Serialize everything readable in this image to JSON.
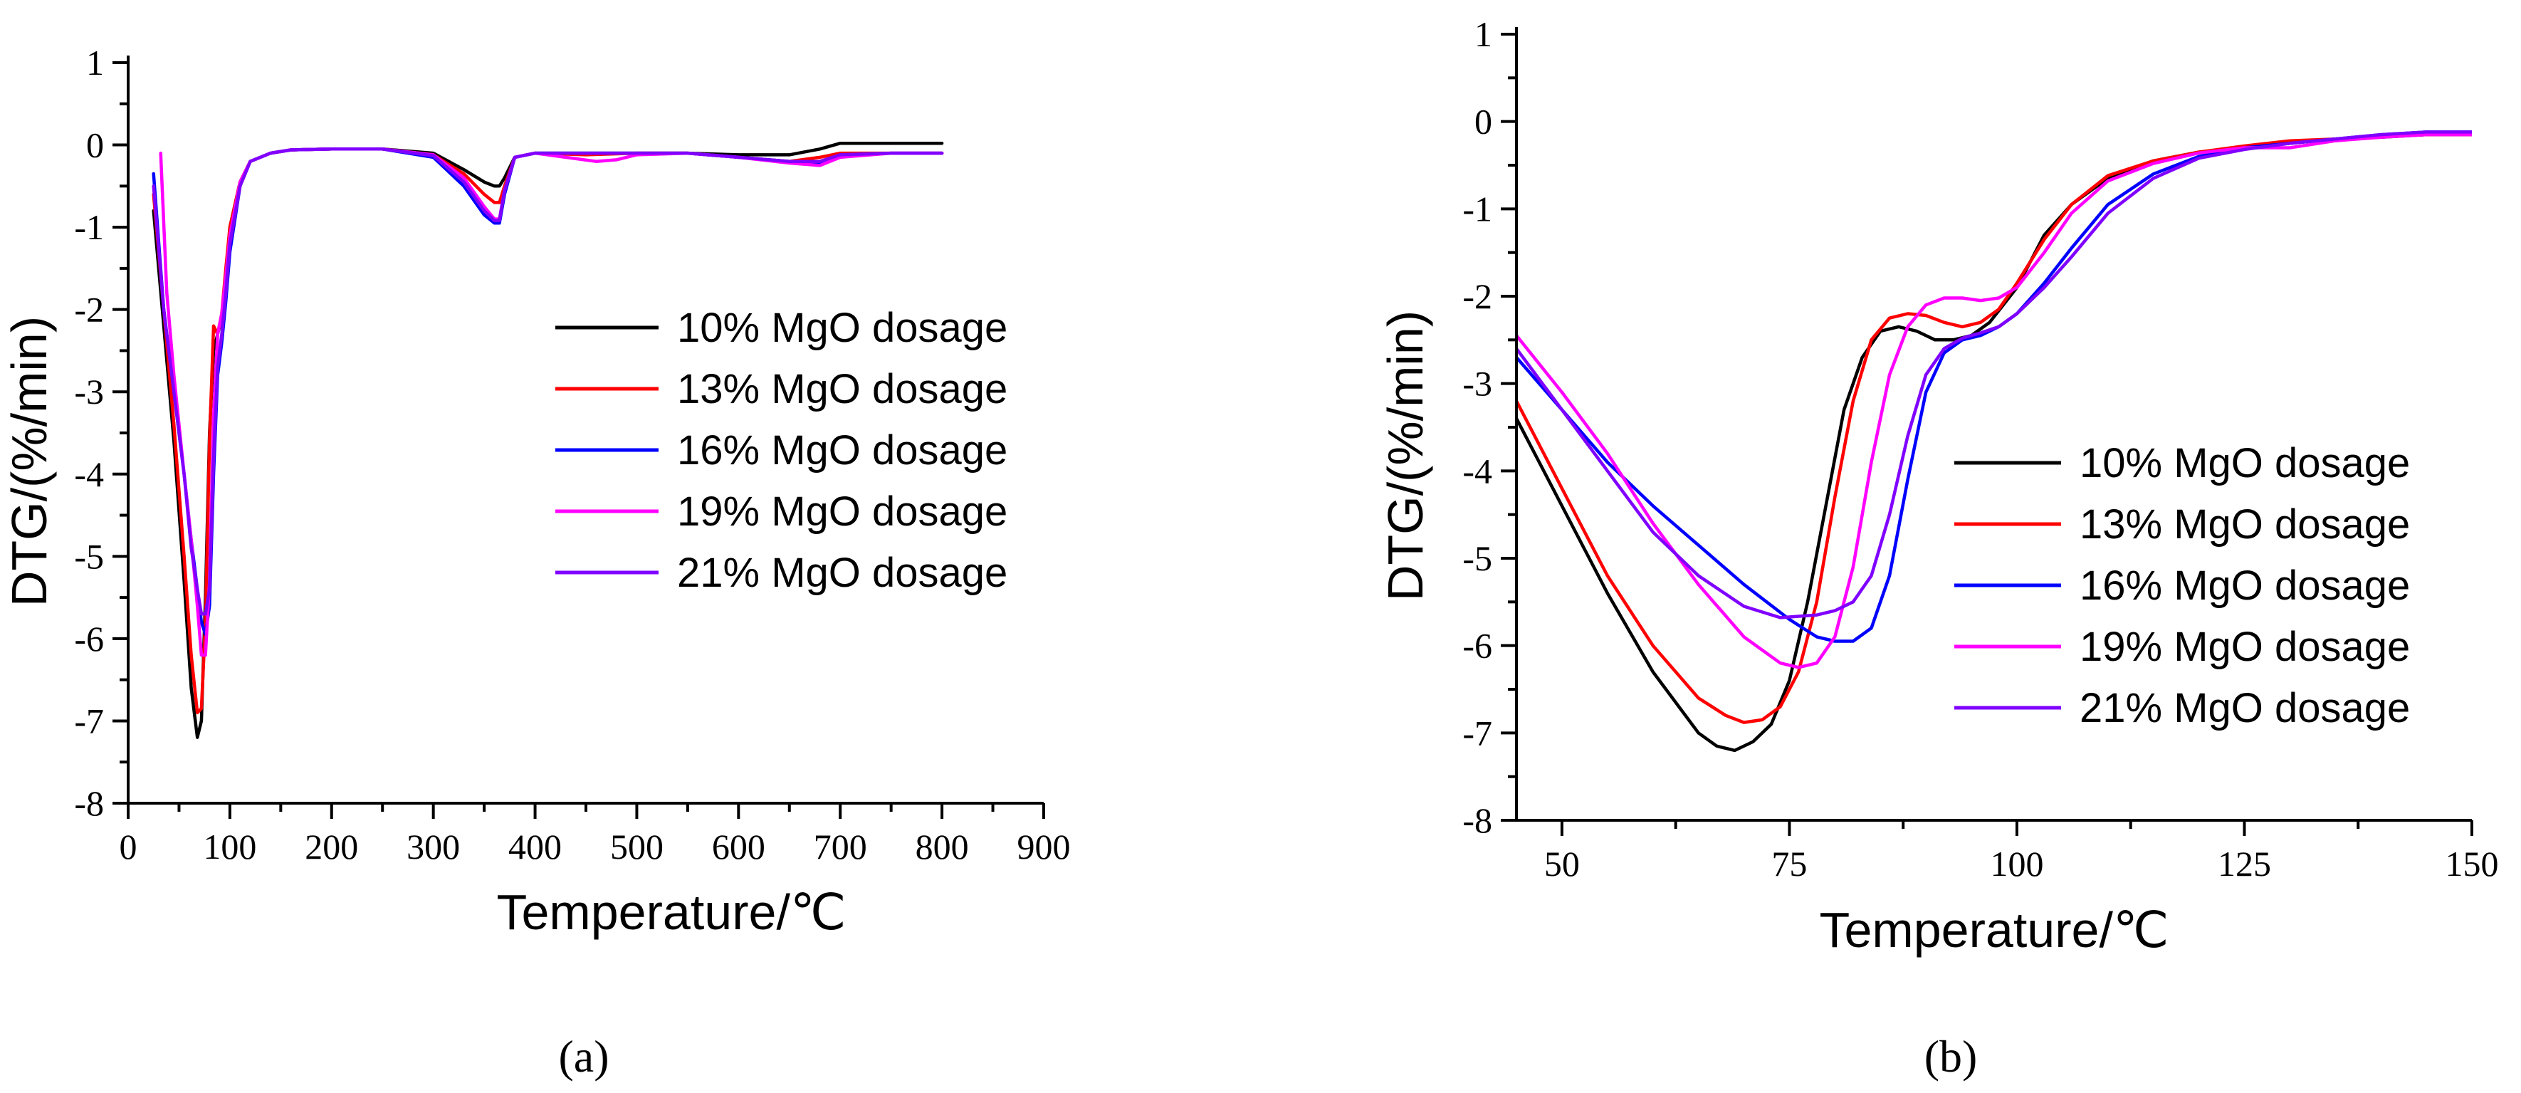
{
  "colors": {
    "10% MgO dosage": "#000000",
    "13% MgO dosage": "#ff0000",
    "16% MgO dosage": "#0000ff",
    "19% MgO dosage": "#ff00ff",
    "21% MgO dosage": "#8000ff"
  },
  "chart_data": [
    {
      "type": "line",
      "panel_label": "(a)",
      "xlabel": "Temperature/℃",
      "ylabel": "DTG/(%/min)",
      "xlim": [
        0,
        900
      ],
      "ylim": [
        -8,
        1
      ],
      "xticks": [
        0,
        100,
        200,
        300,
        400,
        500,
        600,
        700,
        800,
        900
      ],
      "yticks": [
        1,
        0,
        -1,
        -2,
        -3,
        -4,
        -5,
        -6,
        -7,
        -8
      ],
      "legend_position": "center-right",
      "series": [
        {
          "name": "10% MgO dosage",
          "x": [
            25,
            35,
            45,
            55,
            62,
            68,
            72,
            76,
            80,
            84,
            88,
            92,
            96,
            100,
            110,
            120,
            140,
            160,
            200,
            250,
            300,
            330,
            350,
            360,
            365,
            370,
            380,
            400,
            450,
            500,
            550,
            600,
            650,
            680,
            700,
            750,
            800
          ],
          "y": [
            -0.8,
            -2.2,
            -3.6,
            -5.3,
            -6.6,
            -7.2,
            -7.0,
            -5.5,
            -3.5,
            -2.5,
            -2.3,
            -2.1,
            -1.6,
            -1.0,
            -0.45,
            -0.2,
            -0.1,
            -0.06,
            -0.05,
            -0.05,
            -0.1,
            -0.3,
            -0.45,
            -0.5,
            -0.5,
            -0.4,
            -0.15,
            -0.1,
            -0.1,
            -0.1,
            -0.1,
            -0.12,
            -0.12,
            -0.05,
            0.02,
            0.02,
            0.02
          ]
        },
        {
          "name": "13% MgO dosage",
          "x": [
            25,
            35,
            45,
            55,
            62,
            68,
            72,
            76,
            80,
            84,
            88,
            92,
            96,
            100,
            110,
            120,
            140,
            160,
            200,
            250,
            300,
            330,
            350,
            360,
            365,
            370,
            380,
            400,
            450,
            500,
            550,
            600,
            650,
            680,
            700,
            750,
            800
          ],
          "y": [
            -0.6,
            -2.0,
            -3.4,
            -5.0,
            -6.2,
            -6.9,
            -6.85,
            -5.8,
            -3.6,
            -2.2,
            -2.3,
            -2.05,
            -1.5,
            -1.0,
            -0.45,
            -0.2,
            -0.1,
            -0.06,
            -0.05,
            -0.05,
            -0.12,
            -0.35,
            -0.6,
            -0.7,
            -0.7,
            -0.5,
            -0.15,
            -0.1,
            -0.12,
            -0.1,
            -0.1,
            -0.15,
            -0.2,
            -0.15,
            -0.1,
            -0.1,
            -0.1
          ]
        },
        {
          "name": "16% MgO dosage",
          "x": [
            25,
            35,
            45,
            55,
            62,
            68,
            72,
            76,
            80,
            84,
            88,
            92,
            96,
            100,
            110,
            120,
            140,
            160,
            200,
            250,
            300,
            330,
            350,
            360,
            365,
            370,
            380,
            400,
            450,
            500,
            550,
            600,
            650,
            680,
            700,
            750,
            800
          ],
          "y": [
            -0.35,
            -2.0,
            -3.0,
            -4.0,
            -4.8,
            -5.4,
            -5.8,
            -5.95,
            -5.6,
            -4.0,
            -2.8,
            -2.4,
            -1.9,
            -1.3,
            -0.5,
            -0.2,
            -0.1,
            -0.06,
            -0.05,
            -0.05,
            -0.15,
            -0.5,
            -0.85,
            -0.95,
            -0.95,
            -0.6,
            -0.15,
            -0.1,
            -0.1,
            -0.1,
            -0.1,
            -0.15,
            -0.2,
            -0.22,
            -0.12,
            -0.1,
            -0.1
          ]
        },
        {
          "name": "19% MgO dosage",
          "x": [
            32,
            38,
            45,
            55,
            62,
            68,
            72,
            76,
            80,
            84,
            88,
            92,
            96,
            100,
            110,
            120,
            140,
            160,
            200,
            250,
            300,
            330,
            350,
            360,
            365,
            370,
            380,
            400,
            430,
            460,
            480,
            500,
            550,
            600,
            650,
            680,
            700,
            750,
            800
          ],
          "y": [
            -0.1,
            -1.8,
            -2.8,
            -4.0,
            -4.8,
            -5.6,
            -6.2,
            -6.2,
            -5.3,
            -3.3,
            -2.3,
            -2.05,
            -1.6,
            -1.1,
            -0.45,
            -0.2,
            -0.1,
            -0.06,
            -0.05,
            -0.05,
            -0.12,
            -0.4,
            -0.75,
            -0.9,
            -0.9,
            -0.55,
            -0.15,
            -0.1,
            -0.15,
            -0.2,
            -0.18,
            -0.12,
            -0.1,
            -0.15,
            -0.22,
            -0.25,
            -0.15,
            -0.1,
            -0.1
          ]
        },
        {
          "name": "21% MgO dosage",
          "x": [
            25,
            35,
            45,
            55,
            62,
            68,
            72,
            76,
            80,
            84,
            88,
            92,
            96,
            100,
            110,
            120,
            140,
            160,
            200,
            250,
            300,
            330,
            350,
            360,
            365,
            370,
            380,
            400,
            450,
            500,
            550,
            600,
            650,
            680,
            700,
            750,
            800
          ],
          "y": [
            -0.5,
            -2.0,
            -3.0,
            -4.0,
            -4.9,
            -5.4,
            -5.7,
            -5.7,
            -5.4,
            -3.8,
            -2.7,
            -2.3,
            -1.8,
            -1.2,
            -0.5,
            -0.2,
            -0.1,
            -0.06,
            -0.05,
            -0.05,
            -0.13,
            -0.45,
            -0.8,
            -0.92,
            -0.92,
            -0.55,
            -0.15,
            -0.1,
            -0.1,
            -0.1,
            -0.1,
            -0.15,
            -0.2,
            -0.2,
            -0.12,
            -0.1,
            -0.1
          ]
        }
      ]
    },
    {
      "type": "line",
      "panel_label": "(b)",
      "xlabel": "Temperature/℃",
      "ylabel": "DTG/(%/min)",
      "xlim": [
        45,
        150
      ],
      "ylim": [
        -8,
        1
      ],
      "xticks": [
        50,
        75,
        100,
        125,
        150
      ],
      "yticks": [
        1,
        0,
        -1,
        -2,
        -3,
        -4,
        -5,
        -6,
        -7,
        -8
      ],
      "legend_position": "center-right",
      "series": [
        {
          "name": "10% MgO dosage",
          "x": [
            45,
            50,
            55,
            60,
            65,
            67,
            69,
            71,
            73,
            75,
            77,
            79,
            81,
            83,
            85,
            87,
            89,
            91,
            93,
            95,
            97,
            100,
            103,
            106,
            110,
            115,
            120,
            125,
            130,
            135,
            140,
            145,
            150
          ],
          "y": [
            -3.4,
            -4.4,
            -5.4,
            -6.3,
            -7.0,
            -7.15,
            -7.2,
            -7.1,
            -6.9,
            -6.4,
            -5.5,
            -4.4,
            -3.3,
            -2.7,
            -2.4,
            -2.35,
            -2.4,
            -2.5,
            -2.5,
            -2.45,
            -2.3,
            -1.9,
            -1.3,
            -0.95,
            -0.65,
            -0.45,
            -0.35,
            -0.3,
            -0.25,
            -0.2,
            -0.18,
            -0.15,
            -0.15
          ]
        },
        {
          "name": "13% MgO dosage",
          "x": [
            45,
            50,
            55,
            60,
            65,
            68,
            70,
            72,
            74,
            76,
            78,
            80,
            82,
            84,
            86,
            88,
            90,
            92,
            94,
            96,
            98,
            100,
            103,
            106,
            110,
            115,
            120,
            125,
            130,
            135,
            140,
            145,
            150
          ],
          "y": [
            -3.2,
            -4.2,
            -5.2,
            -6.0,
            -6.6,
            -6.8,
            -6.88,
            -6.85,
            -6.7,
            -6.3,
            -5.5,
            -4.3,
            -3.2,
            -2.5,
            -2.25,
            -2.2,
            -2.22,
            -2.3,
            -2.35,
            -2.3,
            -2.15,
            -1.85,
            -1.35,
            -0.95,
            -0.62,
            -0.45,
            -0.35,
            -0.28,
            -0.22,
            -0.2,
            -0.17,
            -0.15,
            -0.15
          ]
        },
        {
          "name": "16% MgO dosage",
          "x": [
            45,
            50,
            55,
            60,
            65,
            70,
            75,
            78,
            80,
            82,
            84,
            86,
            88,
            90,
            92,
            94,
            96,
            98,
            100,
            103,
            106,
            110,
            115,
            120,
            125,
            130,
            135,
            140,
            145,
            150
          ],
          "y": [
            -2.7,
            -3.3,
            -3.9,
            -4.4,
            -4.85,
            -5.3,
            -5.7,
            -5.9,
            -5.95,
            -5.95,
            -5.8,
            -5.2,
            -4.1,
            -3.1,
            -2.65,
            -2.5,
            -2.45,
            -2.35,
            -2.2,
            -1.85,
            -1.45,
            -0.95,
            -0.6,
            -0.4,
            -0.3,
            -0.25,
            -0.2,
            -0.15,
            -0.12,
            -0.12
          ]
        },
        {
          "name": "19% MgO dosage",
          "x": [
            45,
            50,
            55,
            60,
            65,
            70,
            74,
            76,
            78,
            80,
            82,
            84,
            86,
            88,
            90,
            92,
            94,
            96,
            98,
            100,
            103,
            106,
            110,
            115,
            120,
            125,
            130,
            135,
            140,
            145,
            150
          ],
          "y": [
            -2.45,
            -3.1,
            -3.8,
            -4.6,
            -5.3,
            -5.9,
            -6.2,
            -6.25,
            -6.2,
            -5.9,
            -5.1,
            -3.9,
            -2.9,
            -2.35,
            -2.1,
            -2.02,
            -2.02,
            -2.05,
            -2.02,
            -1.9,
            -1.5,
            -1.05,
            -0.68,
            -0.48,
            -0.36,
            -0.3,
            -0.3,
            -0.22,
            -0.18,
            -0.15,
            -0.15
          ]
        },
        {
          "name": "21% MgO dosage",
          "x": [
            45,
            50,
            55,
            60,
            65,
            70,
            74,
            78,
            80,
            82,
            84,
            86,
            88,
            90,
            92,
            94,
            96,
            98,
            100,
            103,
            106,
            110,
            115,
            120,
            125,
            130,
            135,
            140,
            145,
            150
          ],
          "y": [
            -2.6,
            -3.3,
            -4.0,
            -4.7,
            -5.2,
            -5.55,
            -5.68,
            -5.65,
            -5.6,
            -5.5,
            -5.2,
            -4.5,
            -3.6,
            -2.9,
            -2.6,
            -2.48,
            -2.42,
            -2.35,
            -2.2,
            -1.9,
            -1.55,
            -1.05,
            -0.65,
            -0.42,
            -0.32,
            -0.25,
            -0.2,
            -0.15,
            -0.12,
            -0.12
          ]
        }
      ]
    }
  ]
}
